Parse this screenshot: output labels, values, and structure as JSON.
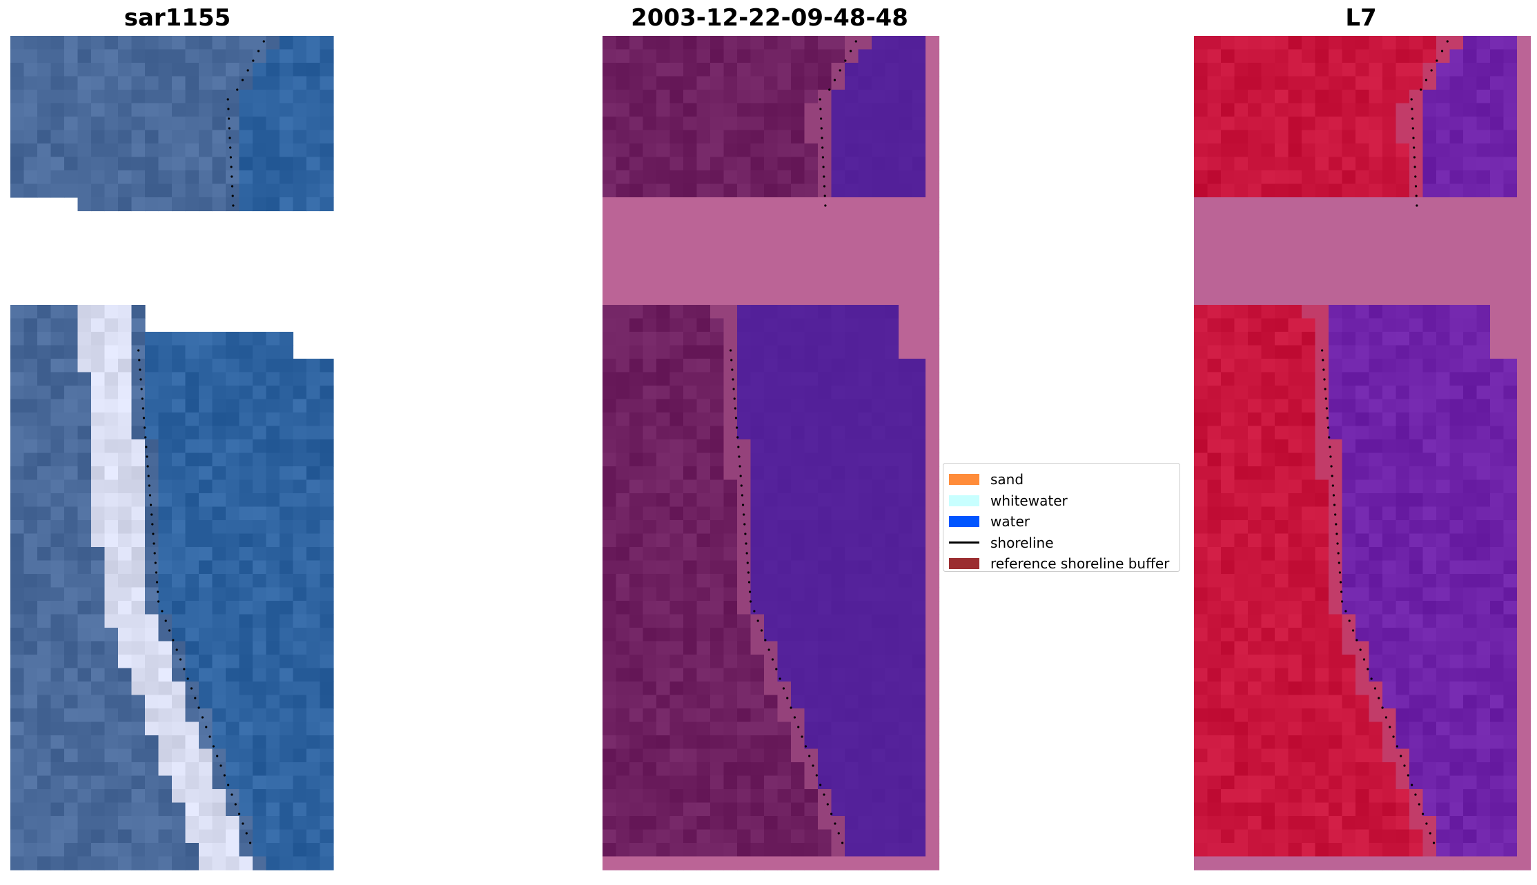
{
  "panels": [
    {
      "title": "sar1155"
    },
    {
      "title": "2003-12-22-09-48-48"
    },
    {
      "title": "L7"
    }
  ],
  "legend": [
    {
      "label": "sand",
      "color": "#ff8c3a",
      "kind": "patch"
    },
    {
      "label": "whitewater",
      "color": "#c8ffff",
      "kind": "patch"
    },
    {
      "label": "water",
      "color": "#0055ff",
      "kind": "patch"
    },
    {
      "label": "shoreline",
      "color": "#000000",
      "kind": "line"
    },
    {
      "label": "reference shoreline buffer",
      "color": "#9b2d30",
      "kind": "patch"
    }
  ],
  "colors": {
    "rgb_land": "#4a6a9a",
    "rgb_water": "#2e63a0",
    "rgb_surf": "#d8dcf0",
    "class_land": "#6e2060",
    "class_water": "#54219a",
    "class_mask": "#bb6496",
    "ndwi_land": "#c8143c",
    "ndwi_water": "#6e22a8",
    "ndwi_mask": "#bb6496",
    "shoreline_dots": "#000000"
  }
}
